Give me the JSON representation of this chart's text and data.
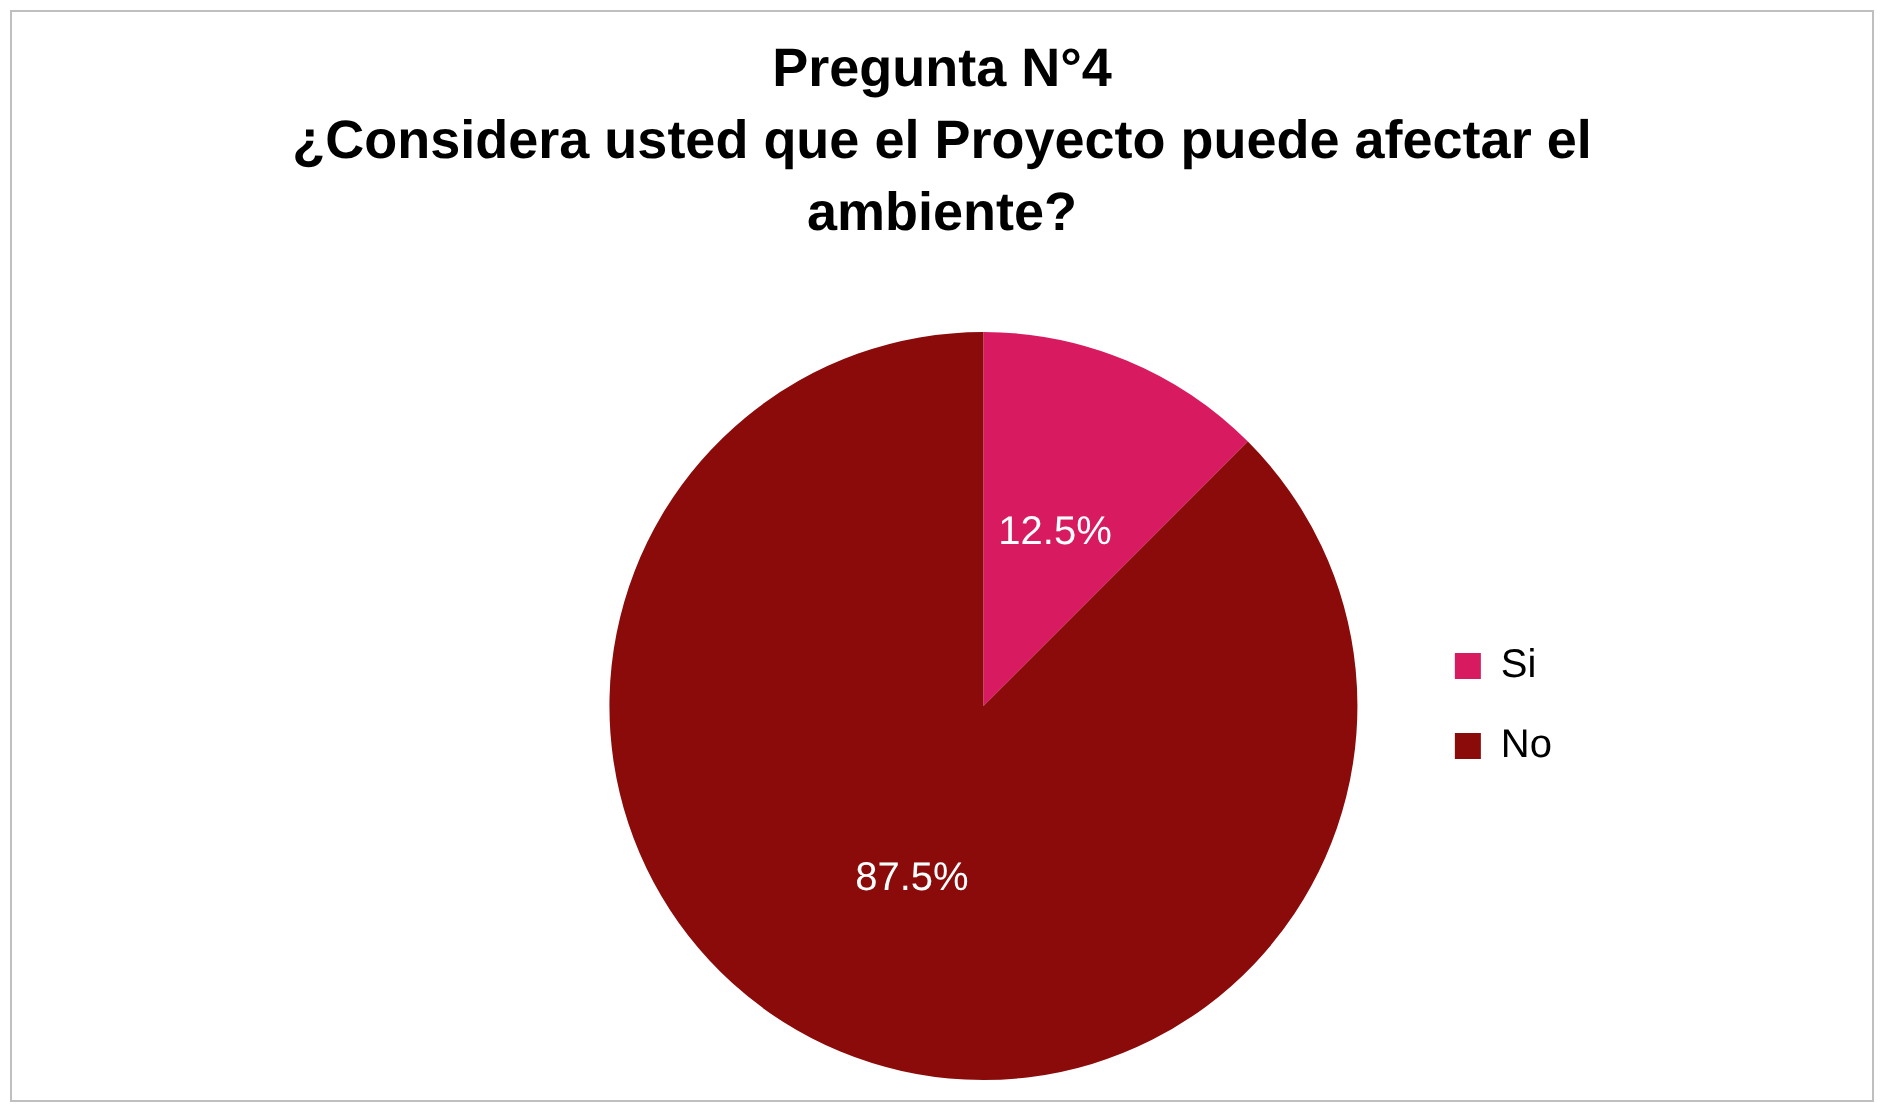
{
  "chart_data": {
    "type": "pie",
    "title": "Pregunta N°4",
    "subtitle": "¿Considera usted que el Proyecto puede afectar el ambiente?",
    "categories": [
      "Si",
      "No"
    ],
    "values": [
      12.5,
      87.5
    ],
    "colors": [
      "#d81b60",
      "#8b0a0a"
    ],
    "value_labels": [
      "12.5%",
      "87.5%"
    ],
    "legend": "right"
  }
}
